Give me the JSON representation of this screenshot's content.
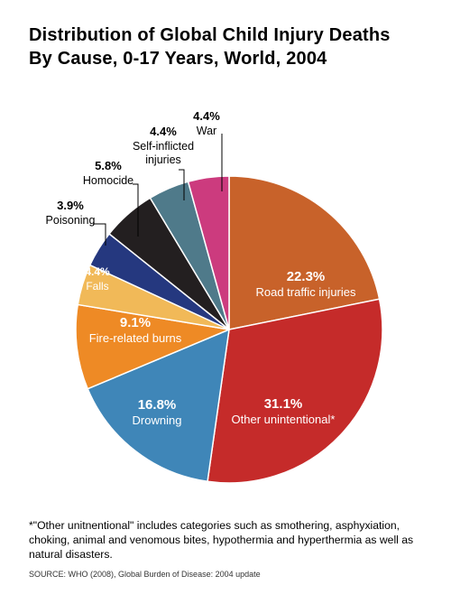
{
  "chart_data": {
    "type": "pie",
    "title_lines": [
      "Distribution of Global Child Injury Deaths",
      "By Cause, 0-17 Years, World, 2004"
    ],
    "slices": [
      {
        "label": "Road traffic injuries",
        "value": 22.3,
        "value_text": "22.3%",
        "color": "#c8622a"
      },
      {
        "label": "Other unintentional*",
        "value": 31.1,
        "value_text": "31.1%",
        "color": "#c52b2a"
      },
      {
        "label": "Drowning",
        "value": 16.8,
        "value_text": "16.8%",
        "color": "#3f86b8"
      },
      {
        "label": "Fire-related burns",
        "value": 9.1,
        "value_text": "9.1%",
        "color": "#ee8a25"
      },
      {
        "label": "Falls",
        "value": 4.4,
        "value_text": "4.4%",
        "color": "#f1b958"
      },
      {
        "label": "Poisoning",
        "value": 3.9,
        "value_text": "3.9%",
        "color": "#25387f"
      },
      {
        "label": "Homocide",
        "value": 5.8,
        "value_text": "5.8%",
        "color": "#231f20"
      },
      {
        "label": "Self-inflicted injuries",
        "value": 4.4,
        "value_text": "4.4%",
        "color": "#4f7a8a"
      },
      {
        "label": "War",
        "value": 4.4,
        "value_text": "4.4%",
        "color": "#cc3b7e"
      }
    ]
  },
  "footnote": "*\"Other unitnentional\" includes categories such as smothering, asphyxiation, choking, animal and venomous bites, hypothermia and hyperthermia as well as natural disasters.",
  "source": "SOURCE: WHO (2008), Global Burden of Disease: 2004 update"
}
